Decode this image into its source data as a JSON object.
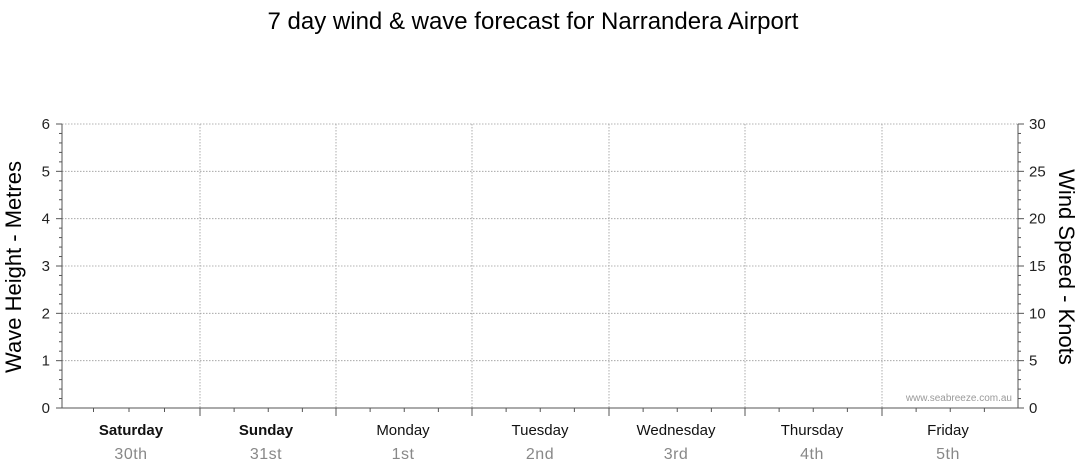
{
  "chart_data": {
    "type": "line",
    "title": "7 day wind & wave forecast for Narrandera Airport",
    "y_left": {
      "label": "Wave Height - Metres",
      "min": 0,
      "max": 6,
      "ticks": [
        0,
        1,
        2,
        3,
        4,
        5,
        6
      ]
    },
    "y_right": {
      "label": "Wind Speed - Knots",
      "min": 0,
      "max": 30,
      "ticks": [
        0,
        5,
        10,
        15,
        20,
        25,
        30
      ]
    },
    "days": [
      {
        "name": "Saturday",
        "date": "30th",
        "bold": true
      },
      {
        "name": "Sunday",
        "date": "31st",
        "bold": true
      },
      {
        "name": "Monday",
        "date": "1st",
        "bold": false
      },
      {
        "name": "Tuesday",
        "date": "2nd",
        "bold": false
      },
      {
        "name": "Wednesday",
        "date": "3rd",
        "bold": false
      },
      {
        "name": "Thursday",
        "date": "4th",
        "bold": false
      },
      {
        "name": "Friday",
        "date": "5th",
        "bold": false
      }
    ],
    "series": [],
    "grid": true,
    "watermark": "www.seabreeze.com.au"
  },
  "colors": {
    "grid": "#9a9a9a",
    "axis": "#555555",
    "date": "#888888"
  }
}
